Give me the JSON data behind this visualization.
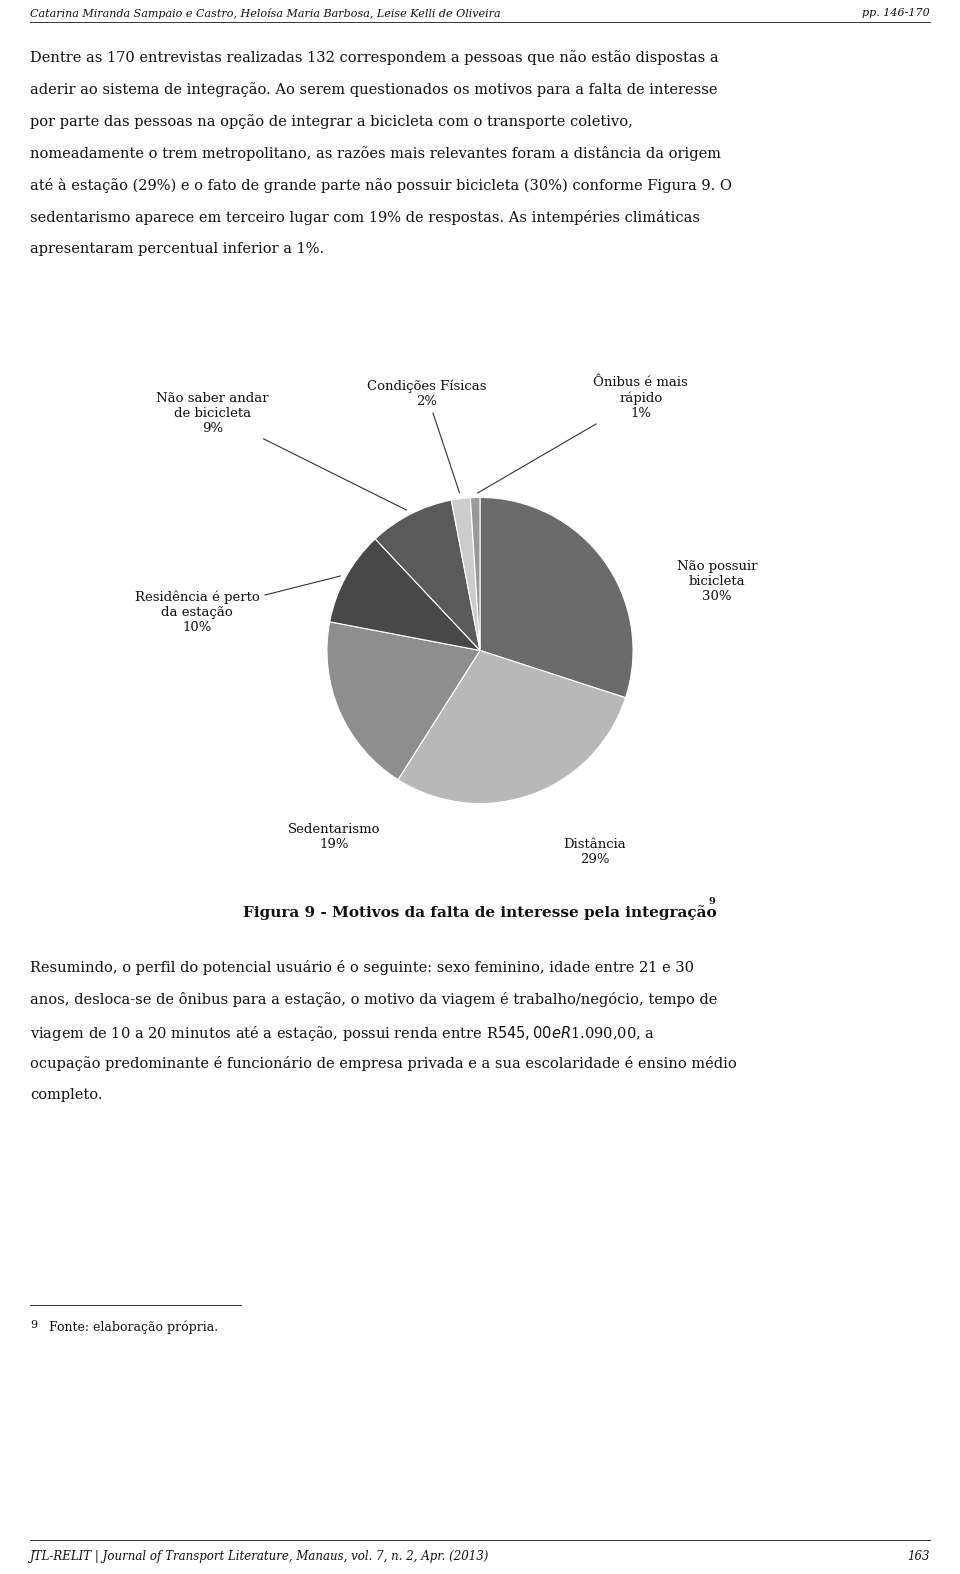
{
  "slices": [
    {
      "label": "Não possuir\nbicicleta\n30%",
      "value": 30,
      "color": "#6b6b6b"
    },
    {
      "label": "Distância\n29%",
      "value": 29,
      "color": "#b8b8b8"
    },
    {
      "label": "Sedentarismo\n19%",
      "value": 19,
      "color": "#8e8e8e"
    },
    {
      "label": "Residência é perto\nda estação\n10%",
      "value": 10,
      "color": "#484848"
    },
    {
      "label": "Não saber andar\nde bicicleta\n9%",
      "value": 9,
      "color": "#5a5a5a"
    },
    {
      "label": "Condições Físicas\n2%",
      "value": 2,
      "color": "#cccccc"
    },
    {
      "label": "Ônibus é mais\nrápido\n1%",
      "value": 1,
      "color": "#999999"
    }
  ],
  "start_angle": 90,
  "header_left": "Catarina Miranda Sampaio e Castro, Heloísa Maria Barbosa, Leise Kelli de Oliveira",
  "header_right": "pp. 146-170",
  "para1_lines": [
    "Dentre as 170 entrevistas realizadas 132 correspondem a pessoas que não estão dispostas a",
    "aderir ao sistema de integração. Ao serem questionados os motivos para a falta de interesse",
    "por parte das pessoas na opção de integrar a bicicleta com o transporte coletivo,",
    "nomeadamente o trem metropolitano, as razões mais relevantes foram a distância da origem",
    "até à estação (29%) e o fato de grande parte não possuir bicicleta (30%) conforme Figura 9. O",
    "sedentarismo aparece em terceiro lugar com 19% de respostas. As intempéries climáticas",
    "apresentaram percentual inferior a 1%."
  ],
  "caption": "Figura 9 - Motivos da falta de interesse pela integração",
  "caption_superscript": "9",
  "para2_lines": [
    "Resumindo, o perfil do potencial usuário é o seguinte: sexo feminino, idade entre 21 e 30",
    "anos, desloca-se de ônibus para a estação, o motivo da viagem é trabalho/negócio, tempo de",
    "viagem de 10 a 20 minutos até a estação, possui renda entre R$545,00 e R$1.090,00, a",
    "ocupação predominante é funcionário de empresa privada e a sua escolaridade é ensino médio",
    "completo."
  ],
  "footnote_superscript": "9",
  "footnote_text": " Fonte: elaboração própria.",
  "bottom_left": "JTL-RELIT | Journal of Transport Literature, Manaus, vol. 7, n. 2, Apr. (2013)",
  "bottom_right": "163",
  "figsize": [
    9.6,
    15.74
  ],
  "dpi": 100
}
